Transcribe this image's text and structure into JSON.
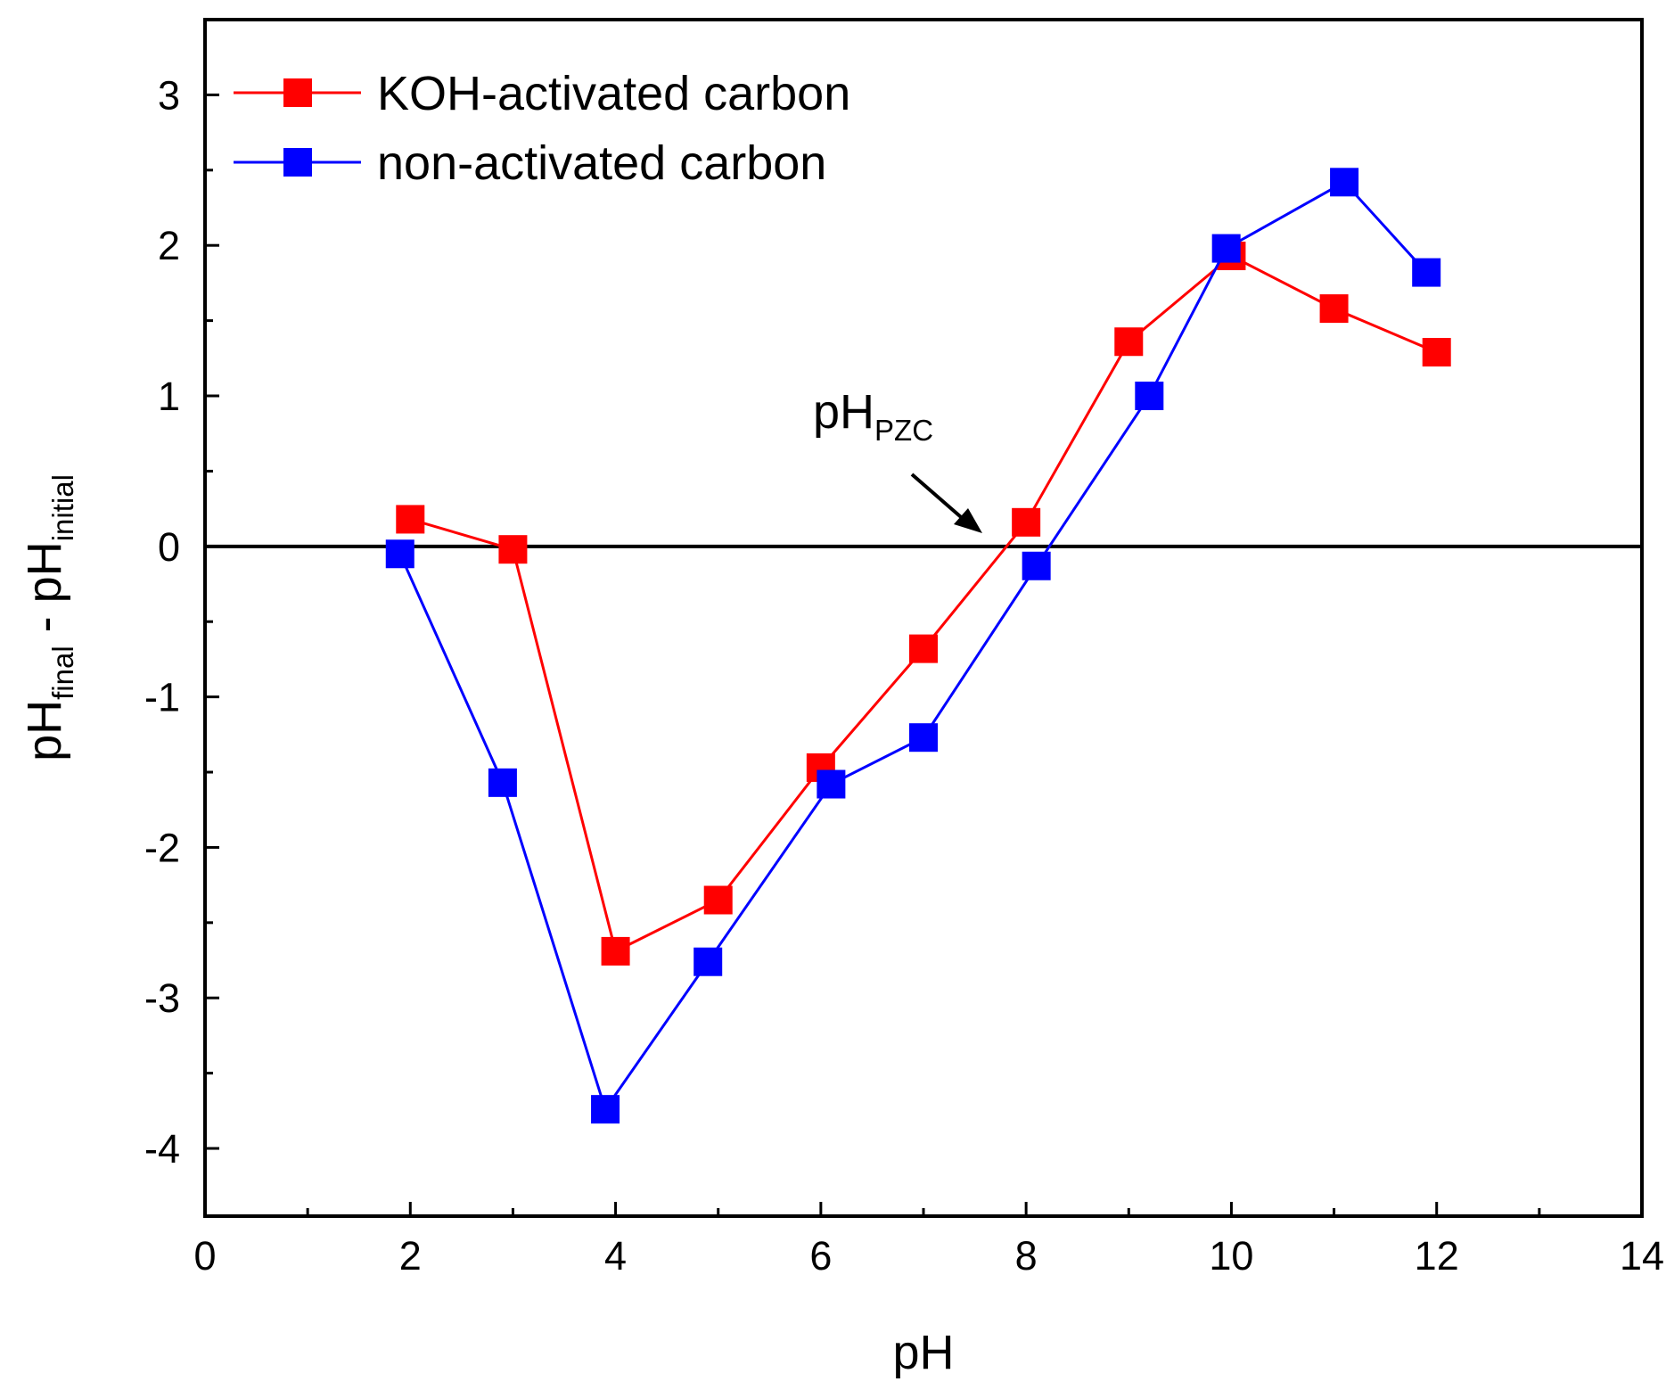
{
  "chart_data": {
    "type": "line",
    "xlabel": "pH",
    "ylabel": {
      "base1": "pH",
      "sub1": "final",
      "mid": " - pH",
      "sub2": "initial"
    },
    "xlim": [
      0,
      14
    ],
    "ylim": [
      -4.45,
      3.5
    ],
    "xticks": [
      0,
      2,
      4,
      6,
      8,
      10,
      12,
      14
    ],
    "yticks": [
      -4,
      -3,
      -2,
      -1,
      0,
      1,
      2,
      3
    ],
    "xtick_labels": [
      "0",
      "2",
      "4",
      "6",
      "8",
      "10",
      "12",
      "14"
    ],
    "ytick_labels": [
      "-4",
      "-3",
      "-2",
      "-1",
      "0",
      "1",
      "2",
      "3"
    ],
    "zero_line": 0,
    "legend_position": "top-left",
    "series": [
      {
        "name": "KOH-activated carbon",
        "color": "#ff0000",
        "marker": "square",
        "x": [
          2.0,
          3.0,
          4.0,
          5.0,
          6.0,
          7.0,
          8.0,
          9.0,
          10.0,
          11.0,
          12.0
        ],
        "y": [
          0.18,
          -0.02,
          -2.69,
          -2.35,
          -1.47,
          -0.68,
          0.16,
          1.36,
          1.93,
          1.58,
          1.29
        ]
      },
      {
        "name": "non-activated carbon",
        "color": "#0000ff",
        "marker": "square",
        "x": [
          1.9,
          2.9,
          3.9,
          4.9,
          6.1,
          7.0,
          8.1,
          9.2,
          9.95,
          11.1,
          11.9
        ],
        "y": [
          -0.05,
          -1.57,
          -3.74,
          -2.76,
          -1.58,
          -1.27,
          -0.13,
          1.0,
          1.98,
          2.42,
          1.82
        ]
      }
    ],
    "annotation": {
      "main": "pH",
      "sub": "PZC",
      "points_to": [
        7.7,
        0.12
      ]
    }
  }
}
